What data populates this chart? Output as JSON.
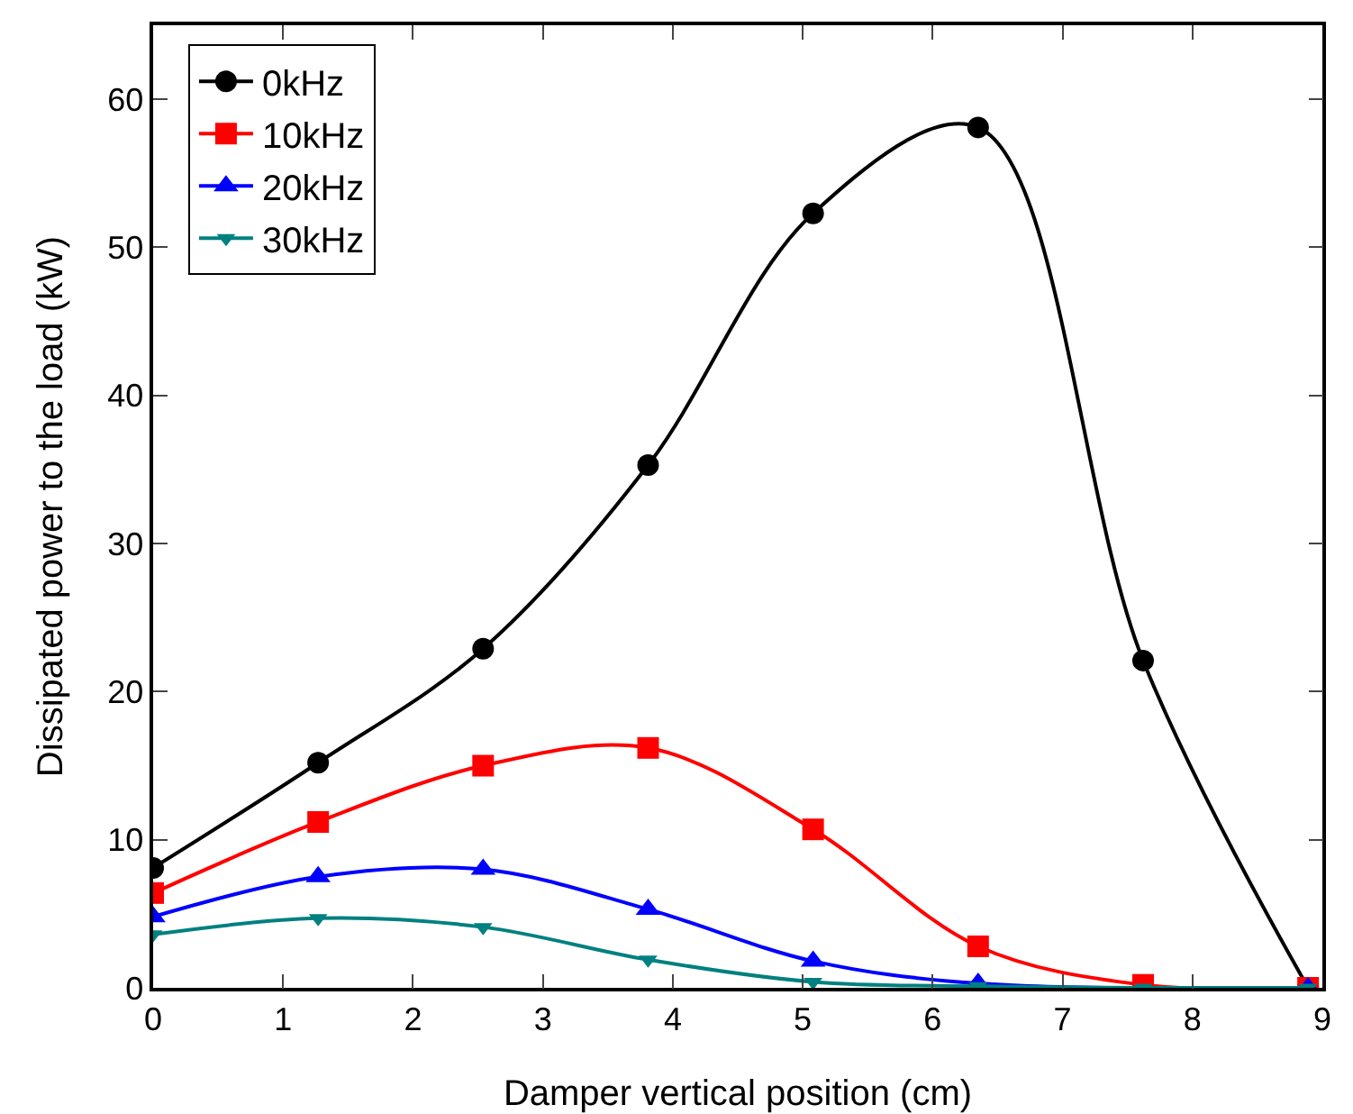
{
  "chart_data": {
    "type": "line",
    "xlabel": "Damper vertical position (cm)",
    "ylabel": "Dissipated power to the load (kW)",
    "x": [
      0,
      1.27,
      2.54,
      3.81,
      5.08,
      6.35,
      7.62,
      8.89
    ],
    "series": [
      {
        "name": "0kHz",
        "color": "#000000",
        "marker": "circle",
        "values": [
          8.1,
          15.2,
          22.9,
          35.3,
          52.3,
          58.1,
          22.1,
          0
        ]
      },
      {
        "name": "10kHz",
        "color": "#ff0000",
        "marker": "square",
        "values": [
          6.4,
          11.2,
          15.0,
          16.2,
          10.7,
          2.8,
          0.2,
          0
        ]
      },
      {
        "name": "20kHz",
        "color": "#0000ff",
        "marker": "triangle",
        "values": [
          4.8,
          7.5,
          8.0,
          5.3,
          1.8,
          0.3,
          null,
          0
        ]
      },
      {
        "name": "30kHz",
        "color": "#008080",
        "marker": "triangle-down",
        "values": [
          3.6,
          4.7,
          4.1,
          1.9,
          0.4,
          0.1,
          0,
          0
        ]
      }
    ],
    "xlim": [
      0,
      9
    ],
    "xticks": [
      0,
      1,
      2,
      3,
      4,
      5,
      6,
      7,
      8,
      9
    ],
    "ylim": [
      0,
      65
    ],
    "yticks": [
      0,
      10,
      20,
      30,
      40,
      50,
      60
    ],
    "grid": false,
    "legend": "top left",
    "line_style": "solid"
  }
}
